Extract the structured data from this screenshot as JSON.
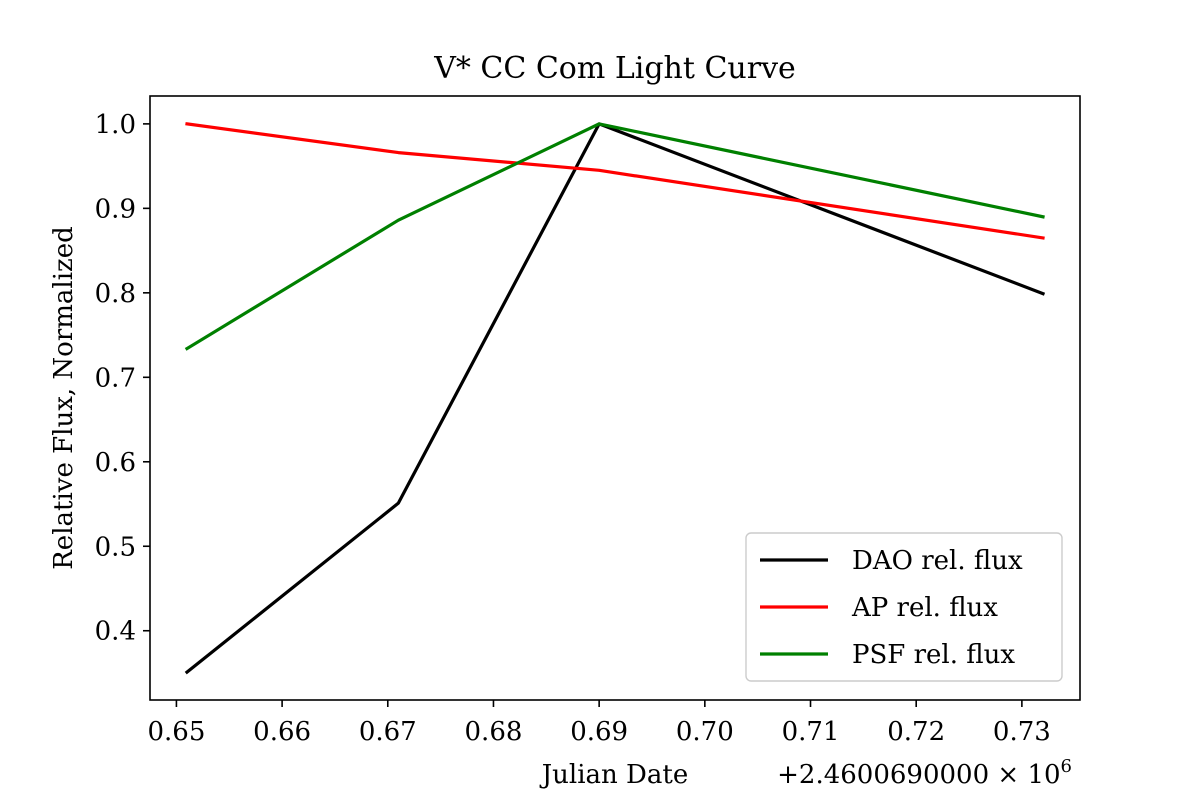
{
  "chart_data": {
    "type": "line",
    "title": "V* CC Com Light Curve",
    "xlabel": "Julian Date",
    "ylabel": "Relative Flux, Normalized",
    "x_offset_label": "+2.4600690000 × 10",
    "x_offset_exponent": "6",
    "x": [
      2460069.651,
      2460069.671,
      2460069.69,
      2460069.732
    ],
    "series": [
      {
        "name": "DAO rel. flux",
        "color": "#000000",
        "values": [
          0.351,
          0.551,
          1.0,
          0.799
        ]
      },
      {
        "name": "AP rel. flux",
        "color": "#ff0000",
        "values": [
          1.0,
          0.966,
          0.945,
          0.865
        ]
      },
      {
        "name": "PSF rel. flux",
        "color": "#008000",
        "values": [
          0.734,
          0.886,
          1.0,
          0.89
        ]
      }
    ],
    "xlim": [
      2460069.6475,
      2460069.7355
    ],
    "ylim": [
      0.318,
      1.033
    ],
    "xticks": [
      2460069.65,
      2460069.66,
      2460069.67,
      2460069.68,
      2460069.69,
      2460069.7,
      2460069.71,
      2460069.72,
      2460069.73
    ],
    "xtick_labels": [
      "0.65",
      "0.66",
      "0.67",
      "0.68",
      "0.69",
      "0.70",
      "0.71",
      "0.72",
      "0.73"
    ],
    "yticks": [
      0.4,
      0.5,
      0.6,
      0.7,
      0.8,
      0.9,
      1.0
    ],
    "ytick_labels": [
      "0.4",
      "0.5",
      "0.6",
      "0.7",
      "0.8",
      "0.9",
      "1.0"
    ],
    "legend_position": "lower-right",
    "grid": false
  }
}
